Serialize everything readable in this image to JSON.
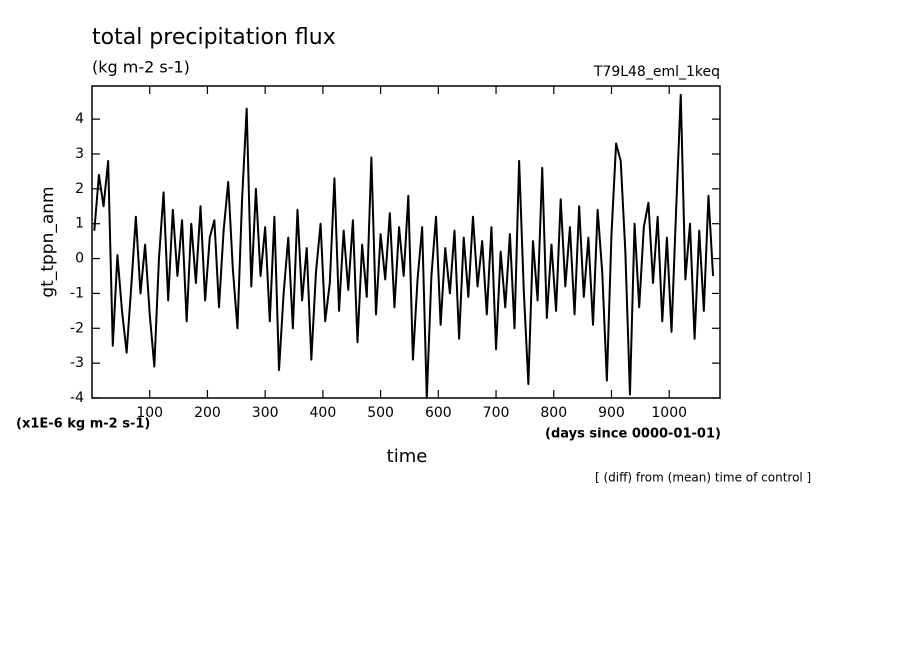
{
  "chart_data": {
    "type": "line",
    "title": "total precipitation flux",
    "subtitle": "(kg m-2 s-1)",
    "annotation_right": "T79L48_eml_1keq",
    "y_label": "gt_tppn_anm",
    "y_unit": "(x1E-6 kg m-2 s-1)",
    "x_label": "time",
    "x_unit": "(days since 0000-01-01)",
    "footnote": "[ (diff) from (mean) time of control ]",
    "xlim": [
      0,
      1088
    ],
    "ylim": [
      -4,
      4.95
    ],
    "xticks": [
      100,
      200,
      300,
      400,
      500,
      600,
      700,
      800,
      900,
      1000
    ],
    "yticks": [
      -4,
      -3,
      -2,
      -1,
      0,
      1,
      2,
      3,
      4
    ],
    "series": [
      {
        "name": "gt_tppn_anm",
        "color": "#000000",
        "x": [
          4,
          12,
          20,
          28,
          36,
          44,
          52,
          60,
          68,
          76,
          84,
          92,
          100,
          108,
          116,
          124,
          132,
          140,
          148,
          156,
          164,
          172,
          180,
          188,
          196,
          204,
          212,
          220,
          228,
          236,
          244,
          252,
          260,
          268,
          276,
          284,
          292,
          300,
          308,
          316,
          324,
          332,
          340,
          348,
          356,
          364,
          372,
          380,
          388,
          396,
          404,
          412,
          420,
          428,
          436,
          444,
          452,
          460,
          468,
          476,
          484,
          492,
          500,
          508,
          516,
          524,
          532,
          540,
          548,
          556,
          564,
          572,
          580,
          588,
          596,
          604,
          612,
          620,
          628,
          636,
          644,
          652,
          660,
          668,
          676,
          684,
          692,
          700,
          708,
          716,
          724,
          732,
          740,
          748,
          756,
          764,
          772,
          780,
          788,
          796,
          804,
          812,
          820,
          828,
          836,
          844,
          852,
          860,
          868,
          876,
          884,
          892,
          900,
          908,
          916,
          924,
          932,
          940,
          948,
          956,
          964,
          972,
          980,
          988,
          996,
          1004,
          1012,
          1020,
          1028,
          1036,
          1044,
          1052,
          1060,
          1068,
          1076
        ],
        "values": [
          0.8,
          2.4,
          1.5,
          2.8,
          -2.5,
          0.1,
          -1.5,
          -2.7,
          -0.8,
          1.2,
          -1.0,
          0.4,
          -1.6,
          -3.1,
          0.0,
          1.9,
          -1.2,
          1.4,
          -0.5,
          1.1,
          -1.8,
          1.0,
          -0.7,
          1.5,
          -1.2,
          0.6,
          1.1,
          -1.4,
          0.8,
          2.2,
          -0.3,
          -2.0,
          1.7,
          4.3,
          -0.8,
          2.0,
          -0.5,
          0.9,
          -1.8,
          1.2,
          -3.2,
          -1.0,
          0.6,
          -2.0,
          1.4,
          -1.2,
          0.3,
          -2.9,
          -0.4,
          1.0,
          -1.8,
          -0.7,
          2.3,
          -1.5,
          0.8,
          -0.9,
          1.1,
          -2.4,
          0.4,
          -1.1,
          2.9,
          -1.6,
          0.7,
          -0.6,
          1.3,
          -1.4,
          0.9,
          -0.5,
          1.8,
          -2.9,
          -0.6,
          0.9,
          -4.0,
          -0.5,
          1.2,
          -1.9,
          0.3,
          -1.0,
          0.8,
          -2.3,
          0.6,
          -1.1,
          1.2,
          -0.8,
          0.5,
          -1.6,
          0.9,
          -2.6,
          0.2,
          -1.4,
          0.7,
          -2.0,
          2.8,
          -0.9,
          -3.6,
          0.5,
          -1.2,
          2.6,
          -1.7,
          0.4,
          -1.5,
          1.7,
          -0.8,
          0.9,
          -1.6,
          1.5,
          -1.1,
          0.6,
          -1.9,
          1.4,
          -0.4,
          -3.5,
          0.7,
          3.3,
          2.8,
          0.2,
          -3.9,
          1.0,
          -1.4,
          0.9,
          1.6,
          -0.7,
          1.2,
          -1.8,
          0.6,
          -2.1,
          1.4,
          4.7,
          -0.6,
          1.0,
          -2.3,
          0.8,
          -1.5,
          1.8,
          -0.5
        ]
      }
    ]
  }
}
